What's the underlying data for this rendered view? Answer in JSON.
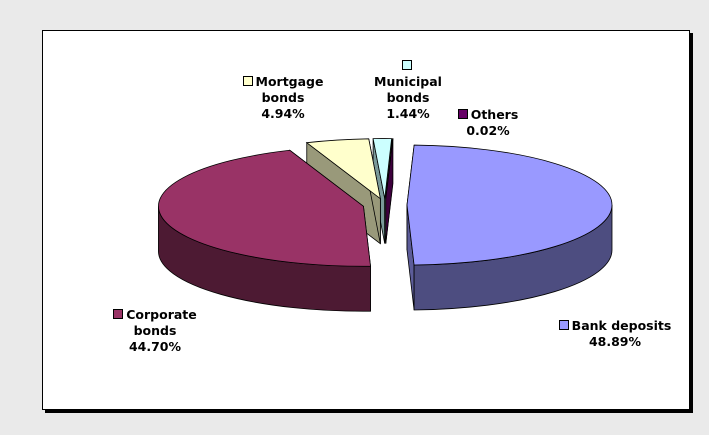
{
  "chart_data": {
    "type": "pie",
    "categories": [
      "Bank deposits",
      "Corporate bonds",
      "Mortgage bonds",
      "Municipal bonds",
      "Others"
    ],
    "values": [
      48.89,
      44.7,
      4.94,
      1.44,
      0.02
    ],
    "value_labels": [
      "48.89%",
      "44.70%",
      "4.94%",
      "1.44%",
      "0.02%"
    ],
    "colors": [
      "#9999ff",
      "#993366",
      "#ffffcc",
      "#ccffff",
      "#660066"
    ]
  }
}
